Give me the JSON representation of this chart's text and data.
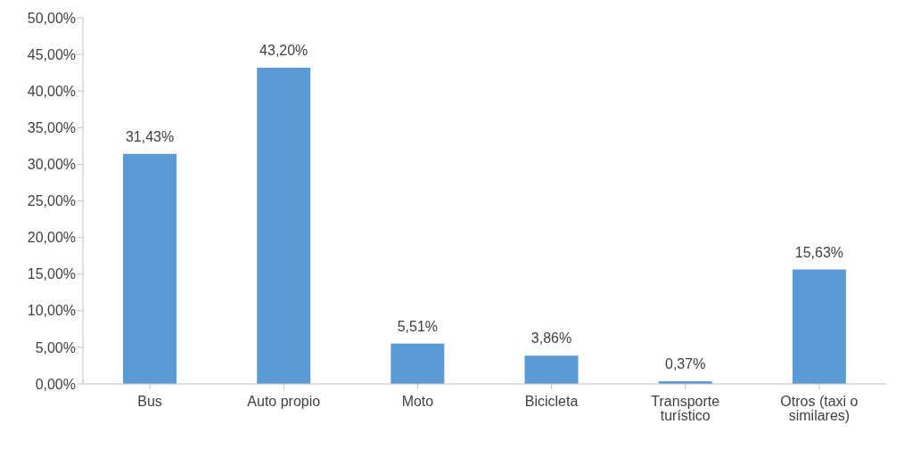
{
  "chart_data": {
    "type": "bar",
    "categories": [
      "Bus",
      "Auto propio",
      "Moto",
      "Bicicleta",
      "Transporte turístico",
      "Otros (taxi o similares)"
    ],
    "values": [
      31.43,
      43.2,
      5.51,
      3.86,
      0.37,
      15.63
    ],
    "color": "#5b9bd5",
    "value_labels": [
      "31,43%",
      "43,20%",
      "5,51%",
      "3,86%",
      "0,37%",
      "15,63%"
    ],
    "ylim": [
      0,
      50
    ],
    "yticks": [
      {
        "value": 0,
        "label": "0,00%"
      },
      {
        "value": 5,
        "label": "5,00%"
      },
      {
        "value": 10,
        "label": "10,00%"
      },
      {
        "value": 15,
        "label": "15,00%"
      },
      {
        "value": 20,
        "label": "20,00%"
      },
      {
        "value": 25,
        "label": "25,00%"
      },
      {
        "value": 30,
        "label": "30,00%"
      },
      {
        "value": 35,
        "label": "35,00%"
      },
      {
        "value": 40,
        "label": "40,00%"
      },
      {
        "value": 45,
        "label": "45,00%"
      },
      {
        "value": 50,
        "label": "50,00%"
      }
    ],
    "grid": false,
    "legend": false
  }
}
